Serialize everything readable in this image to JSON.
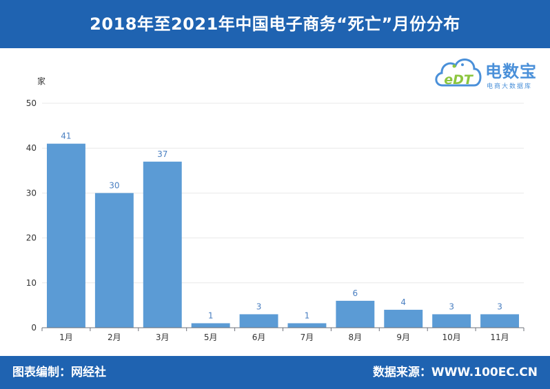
{
  "header": {
    "title": "2018年至2021年中国电子商务“死亡”月份分布"
  },
  "footer": {
    "left": "图表编制：网经社",
    "right": "数据来源：WWW.100EC.CN"
  },
  "logo": {
    "name": "电数宝",
    "subtitle": "电商大数据库",
    "mark_text": "eDT",
    "colors": {
      "primary": "#4a90d9",
      "accent": "#8cc63f"
    }
  },
  "colors": {
    "header_bg": "#1f63b1",
    "bar": "#5b9bd5",
    "label": "#4a7fc1",
    "grid": "#e8e8e8",
    "axis": "#333333"
  },
  "chart_data": {
    "type": "bar",
    "title": "2018年至2021年中国电子商务“死亡”月份分布",
    "xlabel": "",
    "ylabel": "家",
    "ylim": [
      0,
      50
    ],
    "yticks": [
      0,
      10,
      20,
      30,
      40,
      50
    ],
    "grid": true,
    "categories": [
      "1月",
      "2月",
      "3月",
      "5月",
      "6月",
      "7月",
      "8月",
      "9月",
      "10月",
      "11月"
    ],
    "values": [
      41,
      30,
      37,
      1,
      3,
      1,
      6,
      4,
      3,
      3
    ],
    "data_labels": true
  }
}
